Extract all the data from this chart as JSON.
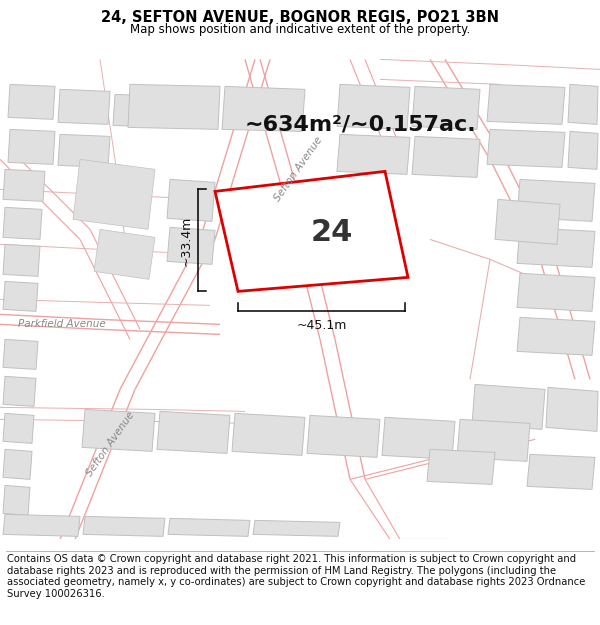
{
  "title_line1": "24, SEFTON AVENUE, BOGNOR REGIS, PO21 3BN",
  "title_line2": "Map shows position and indicative extent of the property.",
  "footer_text": "Contains OS data © Crown copyright and database right 2021. This information is subject to Crown copyright and database rights 2023 and is reproduced with the permission of HM Land Registry. The polygons (including the associated geometry, namely x, y co-ordinates) are subject to Crown copyright and database rights 2023 Ordnance Survey 100026316.",
  "area_label": "~634m²/~0.157ac.",
  "plot_number": "24",
  "dim_width": "~45.1m",
  "dim_height": "~33.4m",
  "street_parkfield": "Parkfield Avenue",
  "street_sefton_lower": "Sefton Avenue",
  "street_sefton_upper": "Sefton Avenue",
  "map_bg": "#f0efee",
  "plot_fill": "#ffffff",
  "plot_edge_color": "#dd0000",
  "building_fill": "#e0e0e0",
  "building_edge": "#c0c0c0",
  "road_line_color": "#f0a0a0",
  "road_line_color2": "#e8b0b0",
  "title_fontsize": 10.5,
  "subtitle_fontsize": 8.5,
  "footer_fontsize": 7.2,
  "area_fontsize": 16,
  "number_fontsize": 22,
  "dim_fontsize": 9
}
